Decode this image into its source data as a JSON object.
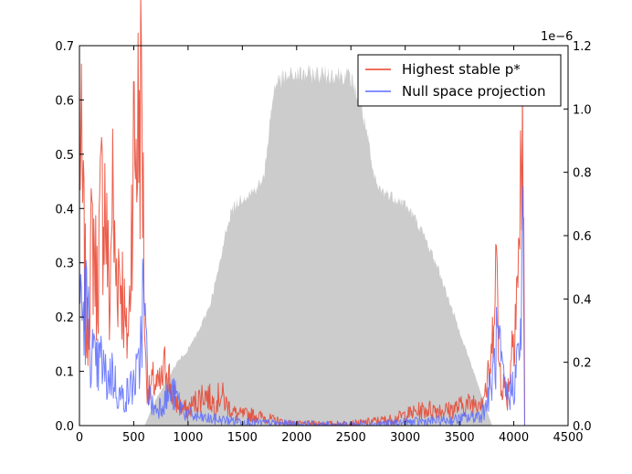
{
  "chart_data": {
    "type": "line",
    "x_ticks": [
      0,
      500,
      1000,
      1500,
      2000,
      2500,
      3000,
      3500,
      4000,
      4500
    ],
    "y_left_ticks": [
      0.0,
      0.1,
      0.2,
      0.3,
      0.4,
      0.5,
      0.6,
      0.7
    ],
    "y_right_ticks": [
      0.0,
      0.2,
      0.4,
      0.6,
      0.8,
      1.0,
      1.2
    ],
    "x_tick_labels": [
      "0",
      "500",
      "1000",
      "1500",
      "2000",
      "2500",
      "3000",
      "3500",
      "4000",
      "4500"
    ],
    "y_left_tick_labels": [
      "0.0",
      "0.1",
      "0.2",
      "0.3",
      "0.4",
      "0.5",
      "0.6",
      "0.7"
    ],
    "y_right_tick_labels": [
      "0.0",
      "0.2",
      "0.4",
      "0.6",
      "0.8",
      "1.0",
      "1.2"
    ],
    "y_right_offset_label": "1e−6",
    "xlim": [
      0,
      4500
    ],
    "ylim_left": [
      0,
      0.7
    ],
    "ylim_right": [
      0,
      1.2
    ],
    "legend_position": "top-right",
    "series": [
      {
        "name": "Highest stable p*",
        "axis": "left",
        "color": "#e8412c",
        "noise": 0.45,
        "x": [
          0,
          10,
          30,
          50,
          70,
          100,
          130,
          160,
          200,
          230,
          260,
          280,
          300,
          330,
          360,
          400,
          430,
          460,
          490,
          520,
          540,
          560,
          575,
          590,
          610,
          640,
          680,
          720,
          760,
          800,
          850,
          900,
          950,
          1000,
          1050,
          1100,
          1150,
          1200,
          1250,
          1300,
          1350,
          1400,
          1450,
          1500,
          1600,
          1700,
          1800,
          1900,
          2000,
          2100,
          2200,
          2300,
          2400,
          2500,
          2600,
          2700,
          2800,
          2900,
          3000,
          3100,
          3200,
          3300,
          3400,
          3500,
          3600,
          3700,
          3750,
          3800,
          3830,
          3860,
          3900,
          3940,
          3980,
          4020,
          4050,
          4070,
          4080,
          4090,
          4100
        ],
        "y": [
          0.58,
          0.5,
          0.4,
          0.28,
          0.15,
          0.3,
          0.35,
          0.25,
          0.4,
          0.44,
          0.3,
          0.2,
          0.45,
          0.28,
          0.3,
          0.25,
          0.15,
          0.2,
          0.5,
          0.52,
          0.55,
          0.58,
          0.62,
          0.35,
          0.1,
          0.06,
          0.08,
          0.07,
          0.08,
          0.12,
          0.06,
          0.04,
          0.03,
          0.03,
          0.04,
          0.05,
          0.06,
          0.05,
          0.04,
          0.06,
          0.04,
          0.03,
          0.02,
          0.02,
          0.02,
          0.015,
          0.01,
          0.005,
          0.003,
          0.003,
          0.004,
          0.003,
          0.003,
          0.004,
          0.005,
          0.008,
          0.01,
          0.012,
          0.02,
          0.025,
          0.03,
          0.03,
          0.028,
          0.035,
          0.04,
          0.05,
          0.07,
          0.12,
          0.38,
          0.12,
          0.08,
          0.05,
          0.14,
          0.25,
          0.3,
          0.5,
          0.58,
          0.45,
          0.0
        ]
      },
      {
        "name": "Null space projection",
        "axis": "left",
        "color": "#5b6bff",
        "noise": 0.5,
        "x": [
          0,
          10,
          30,
          60,
          100,
          150,
          200,
          250,
          300,
          350,
          400,
          450,
          500,
          550,
          580,
          600,
          630,
          660,
          700,
          750,
          800,
          850,
          900,
          950,
          1000,
          1100,
          1200,
          1300,
          1400,
          1500,
          1600,
          1800,
          2000,
          2200,
          2400,
          2600,
          2800,
          3000,
          3200,
          3400,
          3500,
          3600,
          3700,
          3750,
          3800,
          3850,
          3900,
          3950,
          4000,
          4040,
          4070,
          4085,
          4100
        ],
        "y": [
          0.28,
          0.25,
          0.2,
          0.22,
          0.15,
          0.1,
          0.12,
          0.08,
          0.1,
          0.06,
          0.05,
          0.06,
          0.08,
          0.1,
          0.23,
          0.2,
          0.08,
          0.04,
          0.03,
          0.04,
          0.05,
          0.06,
          0.05,
          0.03,
          0.02,
          0.015,
          0.012,
          0.01,
          0.01,
          0.008,
          0.006,
          0.004,
          0.003,
          0.002,
          0.002,
          0.003,
          0.004,
          0.006,
          0.008,
          0.01,
          0.012,
          0.015,
          0.02,
          0.04,
          0.08,
          0.16,
          0.08,
          0.05,
          0.08,
          0.12,
          0.2,
          0.36,
          0.0
        ]
      },
      {
        "name": "",
        "axis": "right",
        "kind": "area",
        "color": "#cccccc",
        "x": [
          0,
          100,
          200,
          300,
          400,
          500,
          600,
          700,
          800,
          900,
          1000,
          1100,
          1200,
          1250,
          1300,
          1350,
          1400,
          1500,
          1600,
          1700,
          1750,
          1800,
          1900,
          2000,
          2100,
          2200,
          2300,
          2400,
          2500,
          2600,
          2650,
          2700,
          2750,
          2800,
          2900,
          3000,
          3100,
          3200,
          3300,
          3400,
          3500,
          3600,
          3700,
          3750,
          3800
        ],
        "y": [
          0.0,
          0.0,
          0.0,
          0.0,
          0.0,
          0.0,
          0.0,
          0.08,
          0.14,
          0.2,
          0.24,
          0.3,
          0.38,
          0.45,
          0.52,
          0.62,
          0.68,
          0.72,
          0.74,
          0.78,
          0.95,
          1.08,
          1.1,
          1.11,
          1.11,
          1.11,
          1.11,
          1.11,
          1.1,
          1.0,
          0.92,
          0.8,
          0.75,
          0.74,
          0.72,
          0.7,
          0.65,
          0.58,
          0.5,
          0.4,
          0.3,
          0.2,
          0.1,
          0.05,
          0.0
        ],
        "noise": 0.08
      }
    ]
  }
}
